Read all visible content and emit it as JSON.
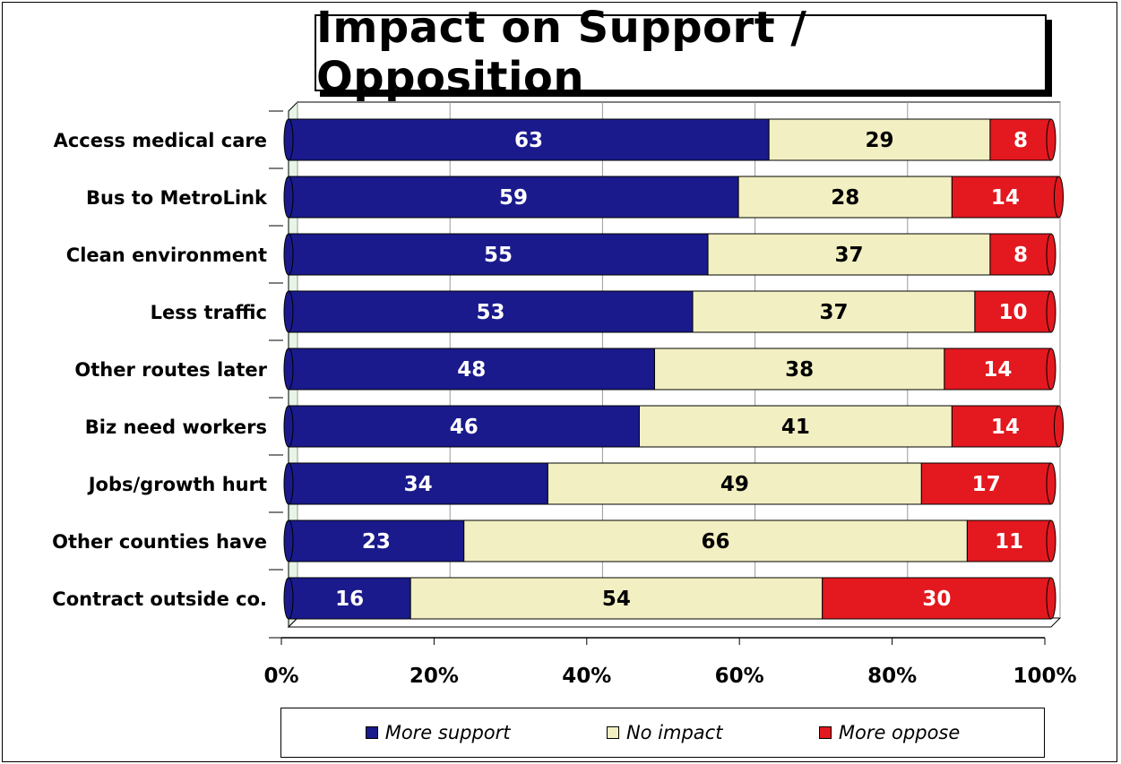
{
  "chart_data": {
    "type": "bar",
    "orientation": "horizontal",
    "stacked": true,
    "title": "Impact on Support / Opposition",
    "categories": [
      "Access medical care",
      "Bus to MetroLink",
      "Clean environment",
      "Less traffic",
      "Other routes later",
      "Biz need workers",
      "Jobs/growth hurt",
      "Other counties have",
      "Contract outside co."
    ],
    "series": [
      {
        "name": "More support",
        "color": "#1a1a8c",
        "label_color": "#ffffff",
        "values": [
          63,
          59,
          55,
          53,
          48,
          46,
          34,
          23,
          16
        ]
      },
      {
        "name": "No impact",
        "color": "#f2efc2",
        "label_color": "#000000",
        "values": [
          29,
          28,
          37,
          37,
          38,
          41,
          49,
          66,
          54
        ]
      },
      {
        "name": "More oppose",
        "color": "#e3191f",
        "label_color": "#ffffff",
        "values": [
          8,
          14,
          8,
          10,
          14,
          14,
          17,
          11,
          30
        ]
      }
    ],
    "xlim": [
      0,
      100
    ],
    "x_ticks": [
      "0%",
      "20%",
      "40%",
      "60%",
      "80%",
      "100%"
    ],
    "grid": true,
    "legend_position": "bottom"
  }
}
